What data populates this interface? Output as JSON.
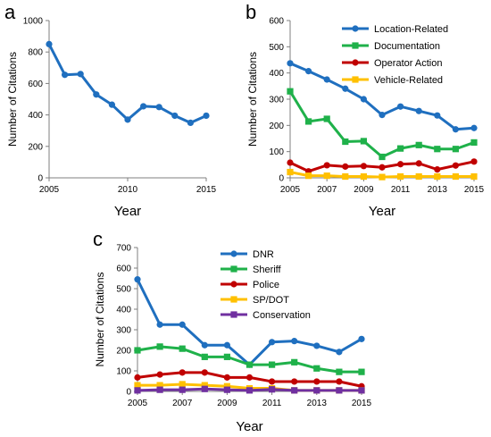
{
  "colors": {
    "blue": "#1F6FBF",
    "green": "#1FB14A",
    "red": "#C00000",
    "yellow": "#FFC000",
    "purple": "#7030A0"
  },
  "chart_data": [
    {
      "panel": "a",
      "type": "line",
      "title": "",
      "xlabel": "Year",
      "ylabel": "Number of Citations",
      "xlim": [
        2005,
        2015
      ],
      "ylim": [
        0,
        1000
      ],
      "xticks": [
        "2005",
        "2010",
        "2015"
      ],
      "yticks": [
        "0",
        "200",
        "400",
        "600",
        "800",
        "1000"
      ],
      "grid": false,
      "legend": "none",
      "x": [
        2005,
        2006,
        2007,
        2008,
        2009,
        2010,
        2011,
        2012,
        2013,
        2014,
        2015
      ],
      "series": [
        {
          "values": [
            850,
            655,
            660,
            530,
            465,
            370,
            455,
            450,
            395,
            350,
            395
          ],
          "color": "blue",
          "marker": "circle"
        }
      ]
    },
    {
      "panel": "b",
      "type": "line",
      "title": "",
      "xlabel": "Year",
      "ylabel": "Number of Citations",
      "xlim": [
        2005,
        2015
      ],
      "ylim": [
        0,
        600
      ],
      "xticks": [
        "2005",
        "2007",
        "2009",
        "2011",
        "2013",
        "2015"
      ],
      "yticks": [
        "0",
        "100",
        "200",
        "300",
        "400",
        "500",
        "600"
      ],
      "grid": false,
      "legend": "top-right",
      "x": [
        2005,
        2006,
        2007,
        2008,
        2009,
        2010,
        2011,
        2012,
        2013,
        2014,
        2015
      ],
      "series": [
        {
          "name": "Location-Related",
          "values": [
            437,
            407,
            375,
            340,
            300,
            240,
            272,
            255,
            238,
            185,
            190
          ],
          "color": "blue",
          "marker": "circle"
        },
        {
          "name": "Documentation",
          "values": [
            330,
            215,
            225,
            138,
            140,
            80,
            112,
            125,
            110,
            110,
            135
          ],
          "color": "green",
          "marker": "square"
        },
        {
          "name": "Operator Action",
          "values": [
            58,
            25,
            48,
            43,
            45,
            40,
            52,
            55,
            32,
            47,
            62
          ],
          "color": "red",
          "marker": "circle"
        },
        {
          "name": "Vehicle-Related",
          "values": [
            22,
            8,
            8,
            5,
            5,
            3,
            5,
            5,
            5,
            5,
            5
          ],
          "color": "yellow",
          "marker": "square"
        }
      ]
    },
    {
      "panel": "c",
      "type": "line",
      "title": "",
      "xlabel": "Year",
      "ylabel": "Number of Citations",
      "xlim": [
        2005,
        2015
      ],
      "ylim": [
        0,
        700
      ],
      "xticks": [
        "2005",
        "2007",
        "2009",
        "2011",
        "2013",
        "2015"
      ],
      "yticks": [
        "0",
        "100",
        "200",
        "300",
        "400",
        "500",
        "600",
        "700"
      ],
      "grid": false,
      "legend": "top-right",
      "x": [
        2005,
        2006,
        2007,
        2008,
        2009,
        2010,
        2011,
        2012,
        2013,
        2014,
        2015
      ],
      "series": [
        {
          "name": "DNR",
          "values": [
            545,
            325,
            325,
            225,
            225,
            130,
            240,
            245,
            222,
            192,
            255
          ],
          "color": "blue",
          "marker": "circle"
        },
        {
          "name": "Sheriff",
          "values": [
            200,
            218,
            208,
            168,
            168,
            130,
            130,
            142,
            112,
            95,
            95
          ],
          "color": "green",
          "marker": "square"
        },
        {
          "name": "Police",
          "values": [
            68,
            82,
            92,
            92,
            68,
            68,
            48,
            48,
            48,
            48,
            25
          ],
          "color": "red",
          "marker": "circle"
        },
        {
          "name": "SP/DOT",
          "values": [
            30,
            30,
            35,
            30,
            25,
            15,
            15,
            5,
            5,
            5,
            5
          ],
          "color": "yellow",
          "marker": "square"
        },
        {
          "name": "Conservation",
          "values": [
            5,
            8,
            8,
            12,
            8,
            5,
            10,
            5,
            5,
            5,
            5
          ],
          "color": "purple",
          "marker": "square"
        }
      ]
    }
  ]
}
